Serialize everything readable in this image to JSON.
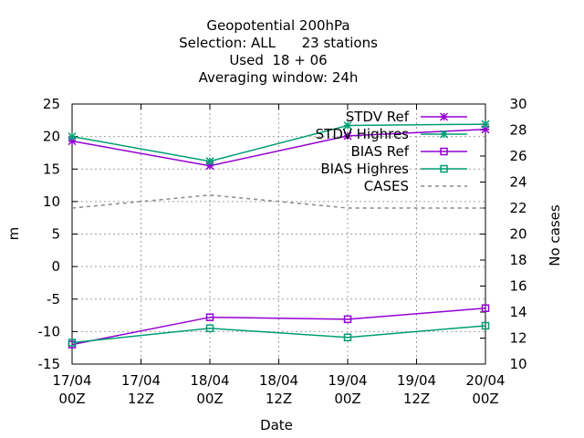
{
  "chart_data": {
    "type": "line",
    "title_lines": [
      "Geopotential 200hPa",
      "Selection: ALL      23 stations",
      "Used  18 + 06",
      "Averaging window: 24h"
    ],
    "xlabel": "Date",
    "ylabel": "m",
    "y2label": "No cases",
    "x_ticks": [
      {
        "line1": "17/04",
        "line2": "00Z"
      },
      {
        "line1": "17/04",
        "line2": "12Z"
      },
      {
        "line1": "18/04",
        "line2": "00Z"
      },
      {
        "line1": "18/04",
        "line2": "12Z"
      },
      {
        "line1": "19/04",
        "line2": "00Z"
      },
      {
        "line1": "19/04",
        "line2": "12Z"
      },
      {
        "line1": "20/04",
        "line2": "00Z"
      }
    ],
    "xlim": [
      0,
      72
    ],
    "ylim": [
      -15,
      25
    ],
    "y_ticks": [
      -15,
      -10,
      -5,
      0,
      5,
      10,
      15,
      20,
      25
    ],
    "y2lim": [
      10,
      30
    ],
    "y2_ticks": [
      10,
      12,
      14,
      16,
      18,
      20,
      22,
      24,
      26,
      28,
      30
    ],
    "grid": true,
    "legend_position": "top-right",
    "series": [
      {
        "name": "STDV Ref",
        "axis": "y1",
        "marker": "star",
        "color": "#9400d3",
        "dash": "",
        "x": [
          0,
          24,
          48,
          72
        ],
        "y": [
          19.3,
          15.5,
          20.1,
          21.1
        ]
      },
      {
        "name": "STDV Highres",
        "axis": "y1",
        "marker": "star",
        "color": "#009e73",
        "dash": "",
        "x": [
          0,
          24,
          48,
          72
        ],
        "y": [
          20.0,
          16.2,
          21.7,
          21.9
        ]
      },
      {
        "name": "BIAS Ref",
        "axis": "y1",
        "marker": "square",
        "color": "#9400d3",
        "dash": "",
        "x": [
          0,
          24,
          48,
          72
        ],
        "y": [
          -12.0,
          -7.8,
          -8.1,
          -6.4
        ]
      },
      {
        "name": "BIAS Highres",
        "axis": "y1",
        "marker": "square",
        "color": "#009e73",
        "dash": "",
        "x": [
          0,
          24,
          48,
          72
        ],
        "y": [
          -11.7,
          -9.5,
          -10.9,
          -9.1
        ]
      },
      {
        "name": "CASES",
        "axis": "y2",
        "marker": "none",
        "color": "#888888",
        "dash": "4,4",
        "x": [
          0,
          24,
          48,
          72
        ],
        "y": [
          22,
          23,
          22,
          22
        ]
      }
    ]
  }
}
